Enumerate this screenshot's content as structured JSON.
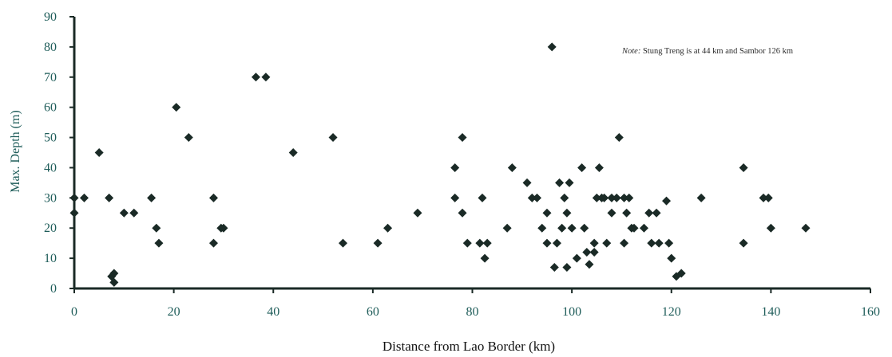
{
  "chart_data": {
    "type": "scatter",
    "title": "",
    "xlabel": "Distance from Lao Border (km)",
    "ylabel": "Max. Depth (m)",
    "xlim": [
      0,
      160
    ],
    "ylim": [
      0,
      90
    ],
    "x_ticks": [
      0,
      20,
      40,
      60,
      80,
      100,
      120,
      140,
      160
    ],
    "y_ticks": [
      0,
      10,
      20,
      30,
      40,
      50,
      60,
      70,
      80,
      90
    ],
    "grid": false,
    "marker": "diamond",
    "marker_color": "#1a2a26",
    "annotation": {
      "prefix": "Note:",
      "text": " Stung Treng is at 44 km and Sambor 126 km"
    },
    "points": [
      {
        "x": 0,
        "y": 30
      },
      {
        "x": 0,
        "y": 25
      },
      {
        "x": 2,
        "y": 30
      },
      {
        "x": 5,
        "y": 45
      },
      {
        "x": 7,
        "y": 30
      },
      {
        "x": 7.5,
        "y": 4
      },
      {
        "x": 8,
        "y": 2
      },
      {
        "x": 8,
        "y": 5
      },
      {
        "x": 10,
        "y": 25
      },
      {
        "x": 12,
        "y": 25
      },
      {
        "x": 15.5,
        "y": 30
      },
      {
        "x": 16.5,
        "y": 20
      },
      {
        "x": 17,
        "y": 15
      },
      {
        "x": 20.5,
        "y": 60
      },
      {
        "x": 23,
        "y": 50
      },
      {
        "x": 28,
        "y": 30
      },
      {
        "x": 28,
        "y": 15
      },
      {
        "x": 29.5,
        "y": 20
      },
      {
        "x": 30,
        "y": 20
      },
      {
        "x": 36.5,
        "y": 70
      },
      {
        "x": 38.5,
        "y": 70
      },
      {
        "x": 44,
        "y": 45
      },
      {
        "x": 52,
        "y": 50
      },
      {
        "x": 54,
        "y": 15
      },
      {
        "x": 61,
        "y": 15
      },
      {
        "x": 63,
        "y": 20
      },
      {
        "x": 69,
        "y": 25
      },
      {
        "x": 76.5,
        "y": 40
      },
      {
        "x": 76.5,
        "y": 30
      },
      {
        "x": 78,
        "y": 50
      },
      {
        "x": 78,
        "y": 25
      },
      {
        "x": 79,
        "y": 15
      },
      {
        "x": 81.5,
        "y": 15
      },
      {
        "x": 82,
        "y": 30
      },
      {
        "x": 82.5,
        "y": 10
      },
      {
        "x": 83,
        "y": 15
      },
      {
        "x": 87,
        "y": 20
      },
      {
        "x": 88,
        "y": 40
      },
      {
        "x": 91,
        "y": 35
      },
      {
        "x": 92,
        "y": 30
      },
      {
        "x": 93,
        "y": 30
      },
      {
        "x": 94,
        "y": 20
      },
      {
        "x": 95,
        "y": 15
      },
      {
        "x": 95,
        "y": 25
      },
      {
        "x": 96,
        "y": 80
      },
      {
        "x": 96.5,
        "y": 7
      },
      {
        "x": 97,
        "y": 15
      },
      {
        "x": 97.5,
        "y": 35
      },
      {
        "x": 98,
        "y": 20
      },
      {
        "x": 98.5,
        "y": 30
      },
      {
        "x": 99,
        "y": 25
      },
      {
        "x": 99,
        "y": 7
      },
      {
        "x": 99.5,
        "y": 35
      },
      {
        "x": 100,
        "y": 20
      },
      {
        "x": 101,
        "y": 10
      },
      {
        "x": 102,
        "y": 40
      },
      {
        "x": 102.5,
        "y": 20
      },
      {
        "x": 103,
        "y": 12
      },
      {
        "x": 103.5,
        "y": 8
      },
      {
        "x": 104.5,
        "y": 12
      },
      {
        "x": 104.5,
        "y": 15
      },
      {
        "x": 105,
        "y": 30
      },
      {
        "x": 105.5,
        "y": 40
      },
      {
        "x": 106,
        "y": 30
      },
      {
        "x": 106.5,
        "y": 30
      },
      {
        "x": 107,
        "y": 15
      },
      {
        "x": 108,
        "y": 25
      },
      {
        "x": 108,
        "y": 30
      },
      {
        "x": 109,
        "y": 30
      },
      {
        "x": 109.5,
        "y": 50
      },
      {
        "x": 110.5,
        "y": 30
      },
      {
        "x": 110.5,
        "y": 15
      },
      {
        "x": 111,
        "y": 25
      },
      {
        "x": 111.5,
        "y": 30
      },
      {
        "x": 112,
        "y": 20
      },
      {
        "x": 112.5,
        "y": 20
      },
      {
        "x": 114.5,
        "y": 20
      },
      {
        "x": 115.5,
        "y": 25
      },
      {
        "x": 116,
        "y": 15
      },
      {
        "x": 117,
        "y": 25
      },
      {
        "x": 117.5,
        "y": 15
      },
      {
        "x": 119,
        "y": 29
      },
      {
        "x": 119.5,
        "y": 15
      },
      {
        "x": 120,
        "y": 10
      },
      {
        "x": 121,
        "y": 4
      },
      {
        "x": 122,
        "y": 5
      },
      {
        "x": 126,
        "y": 30
      },
      {
        "x": 134.5,
        "y": 40
      },
      {
        "x": 134.5,
        "y": 15
      },
      {
        "x": 138.5,
        "y": 30
      },
      {
        "x": 139.5,
        "y": 30
      },
      {
        "x": 140,
        "y": 20
      },
      {
        "x": 147,
        "y": 20
      }
    ]
  }
}
